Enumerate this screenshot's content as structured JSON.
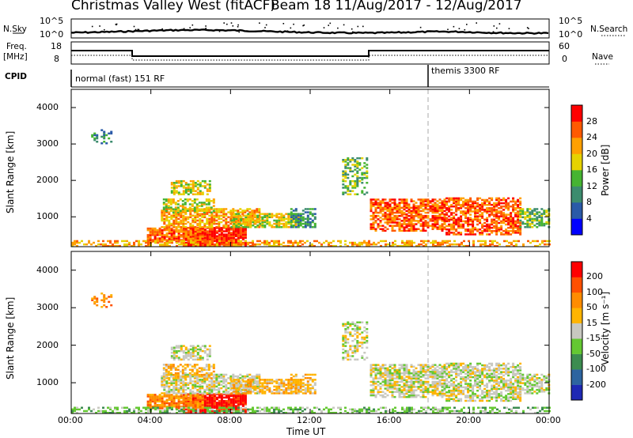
{
  "header": {
    "station": "Christmas Valley West (fitACF)",
    "beam_and_dates": "Beam 18 11/Aug/2017 - 12/Aug/2017"
  },
  "top_panels": {
    "nsky_label": "N.Sky",
    "nsearch_label": "N.Search",
    "nave_label": "Nave",
    "cpid_label": "CPID",
    "freq_label": "Freq.",
    "freq_unit": "[MHz]",
    "noise_ticks_left": [
      "10^5",
      "10^0"
    ],
    "noise_ticks_right": [
      "10^5",
      "10^0"
    ],
    "freq_ticks_left": [
      "18",
      "8"
    ],
    "freq_ticks_right": [
      "60",
      "0"
    ],
    "cpid_segments": [
      "normal (fast) 151 RF",
      "themis 3300 RF"
    ]
  },
  "axes": {
    "ylabel": "Slant Range [km]",
    "xlabel": "Time UT",
    "xticks": [
      "00:00",
      "04:00",
      "08:00",
      "12:00",
      "16:00",
      "20:00",
      "00:00"
    ],
    "yticks": [
      "1000",
      "2000",
      "3000",
      "4000"
    ]
  },
  "colorbars": {
    "power": {
      "label": "Power [dB]",
      "ticks": [
        "4",
        "8",
        "12",
        "16",
        "20",
        "24",
        "28"
      ],
      "colors": [
        "#0000ff",
        "#2a5aa8",
        "#3c8c6e",
        "#46b432",
        "#e6d200",
        "#ffa000",
        "#ff5a00",
        "#ff0000"
      ]
    },
    "velocity": {
      "label": "Velocity [m s⁻¹]",
      "ticks": [
        "200",
        "100",
        "50",
        "15",
        "-15",
        "-50",
        "-100",
        "-200"
      ],
      "colors": [
        "#1e28b4",
        "#2d64a0",
        "#3c8c50",
        "#64c832",
        "#c8c8c0",
        "#ffb400",
        "#ff8c00",
        "#ff5000",
        "#ff0000"
      ]
    }
  },
  "chart_data": {
    "type": "heatmap",
    "x_range_hours": [
      0,
      24
    ],
    "y_range_km": [
      180,
      4500
    ],
    "panels": [
      "power",
      "velocity"
    ],
    "ground_scatter_color": "#bebebe"
  }
}
